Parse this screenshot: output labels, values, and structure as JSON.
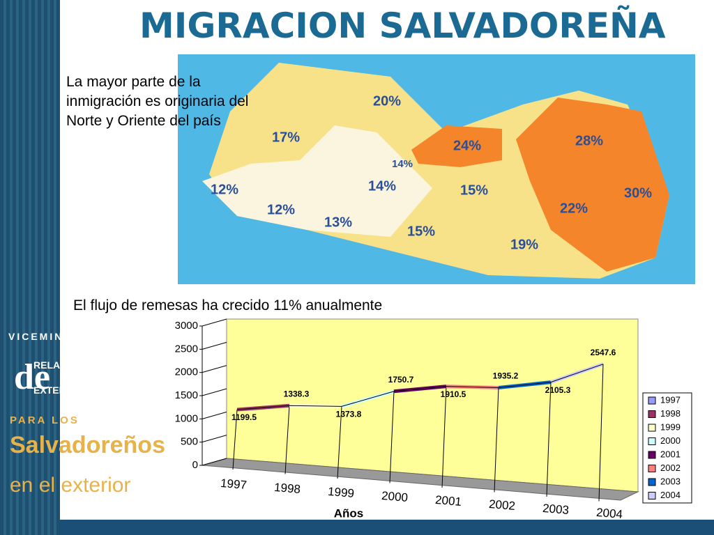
{
  "title": "MIGRACION SALVADOREÑA",
  "sidebar": {
    "line1": "VICEMINISTERIO",
    "de": "de",
    "line2": "RELACIONES",
    "line3": "EXTERIORES",
    "line4": "PARA LOS",
    "line5": "Salvadoreños",
    "line6": "en el exterior"
  },
  "map_note": "La mayor parte de la inmigración es originaria del Norte y Oriente del país",
  "map": {
    "regions": [
      {
        "label": "20%"
      },
      {
        "label": "17%"
      },
      {
        "label": "24%"
      },
      {
        "label": "28%"
      },
      {
        "label": "14%"
      },
      {
        "label": "12%"
      },
      {
        "label": "14%"
      },
      {
        "label": "15%"
      },
      {
        "label": "30%"
      },
      {
        "label": "12%"
      },
      {
        "label": "22%"
      },
      {
        "label": "13%"
      },
      {
        "label": "15%"
      },
      {
        "label": "19%"
      }
    ]
  },
  "remittance_note": "El flujo de remesas ha crecido 11% anualmente",
  "chart_data": {
    "type": "line",
    "x_label": "Años",
    "categories": [
      "1997",
      "1998",
      "1999",
      "2000",
      "2001",
      "2002",
      "2003",
      "2004"
    ],
    "values": [
      1199.5,
      1338.3,
      1373.8,
      1750.7,
      1910.5,
      1935.2,
      2105.3,
      2547.6
    ],
    "category_colors": [
      "#9999ff",
      "#993366",
      "#ffffcc",
      "#ccffff",
      "#660066",
      "#ff8080",
      "#0066cc",
      "#ccccff"
    ],
    "ylim": [
      0,
      3000
    ],
    "yticks": [
      0,
      500,
      1000,
      1500,
      2000,
      2500,
      3000
    ],
    "grid": true,
    "legend": "right"
  }
}
